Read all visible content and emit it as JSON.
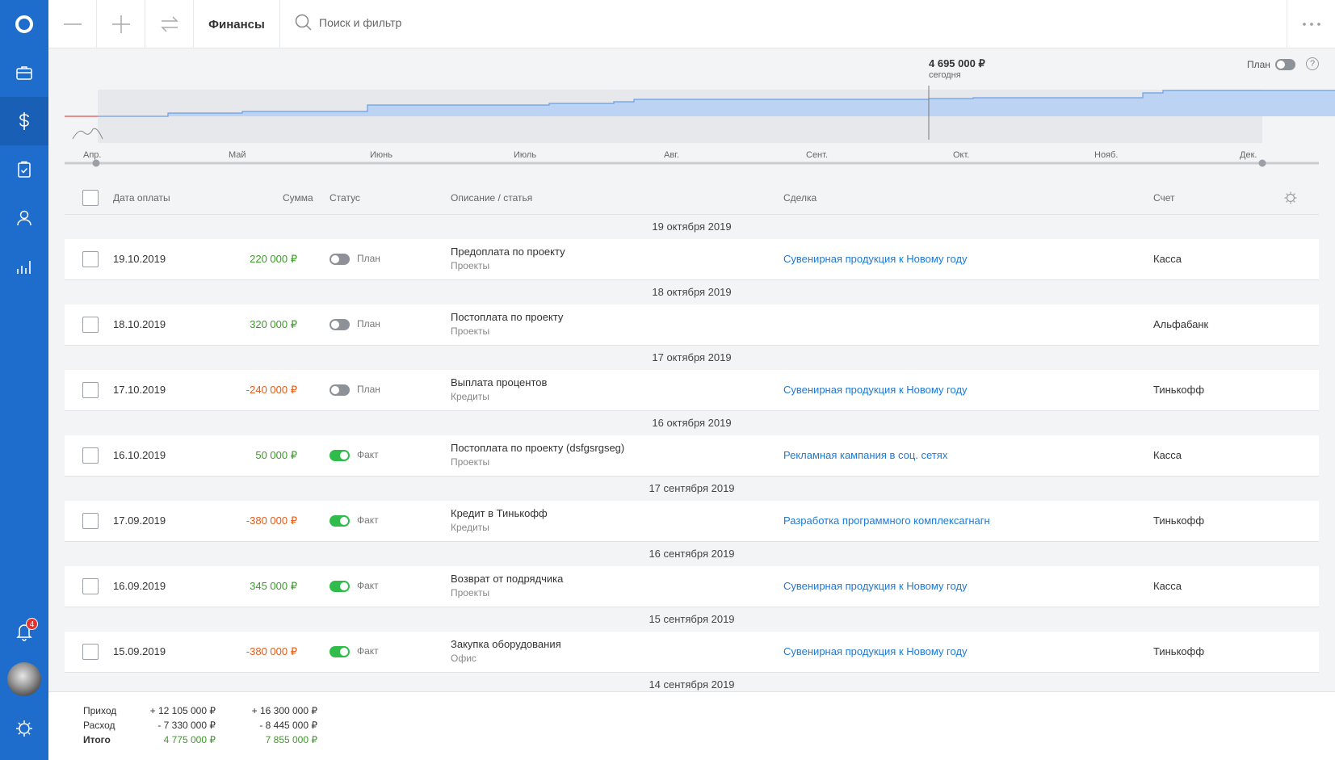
{
  "app": {
    "section_title": "Финансы"
  },
  "sidebar": {
    "items": [
      {
        "name": "logo-icon"
      },
      {
        "name": "briefcase-icon"
      },
      {
        "name": "dollar-icon"
      },
      {
        "name": "clipboard-icon"
      },
      {
        "name": "user-icon"
      },
      {
        "name": "bar-chart-icon"
      }
    ],
    "notifications": {
      "badge": "4"
    }
  },
  "search": {
    "placeholder": "Поиск и фильтр"
  },
  "chart": {
    "today_value": "4 695 000 ₽",
    "today_label": "сегодня",
    "plan_toggle_label": "План",
    "help": "?",
    "months": [
      "Апр.",
      "Май",
      "Июнь",
      "Июль",
      "Авг.",
      "Сент.",
      "Окт.",
      "Нояб.",
      "Дек."
    ]
  },
  "table": {
    "headers": {
      "date": "Дата оплаты",
      "amount": "Сумма",
      "status": "Статус",
      "description": "Описание / статья",
      "deal": "Сделка",
      "account": "Счет"
    },
    "groups": [
      {
        "header": "19 октября 2019",
        "row": {
          "date": "19.10.2019",
          "amount": "220 000 ₽",
          "sign": "pos",
          "status": "План",
          "on": false,
          "desc": "Предоплата по проекту",
          "cat": "Проекты",
          "deal": "Сувенирная продукция к Новому году",
          "account": "Касса"
        }
      },
      {
        "header": "18 октября 2019",
        "row": {
          "date": "18.10.2019",
          "amount": "320 000 ₽",
          "sign": "pos",
          "status": "План",
          "on": false,
          "desc": "Постоплата по проекту",
          "cat": "Проекты",
          "deal": "",
          "account": "Альфабанк"
        }
      },
      {
        "header": "17 октября 2019",
        "row": {
          "date": "17.10.2019",
          "amount": "-240 000 ₽",
          "sign": "neg",
          "status": "План",
          "on": false,
          "desc": "Выплата процентов",
          "cat": "Кредиты",
          "deal": "Сувенирная продукция к Новому году",
          "account": "Тинькофф"
        }
      },
      {
        "header": "16 октября 2019",
        "row": {
          "date": "16.10.2019",
          "amount": "50 000 ₽",
          "sign": "pos",
          "status": "Факт",
          "on": true,
          "desc": "Постоплата по проекту (dsfgsrgseg)",
          "cat": "Проекты",
          "deal": "Рекламная кампания в соц. сетях",
          "account": "Касса"
        }
      },
      {
        "header": "17 сентября 2019",
        "row": {
          "date": "17.09.2019",
          "amount": "-380 000 ₽",
          "sign": "neg",
          "status": "Факт",
          "on": true,
          "desc": "Кредит в Тинькофф",
          "cat": "Кредиты",
          "deal": "Разработка программного комплексагнагн",
          "account": "Тинькофф"
        }
      },
      {
        "header": "16 сентября 2019",
        "row": {
          "date": "16.09.2019",
          "amount": "345 000 ₽",
          "sign": "pos",
          "status": "Факт",
          "on": true,
          "desc": "Возврат от подрядчика",
          "cat": "Проекты",
          "deal": "Сувенирная продукция к Новому году",
          "account": "Касса"
        }
      },
      {
        "header": "15 сентября 2019",
        "row": {
          "date": "15.09.2019",
          "amount": "-380 000 ₽",
          "sign": "neg",
          "status": "Факт",
          "on": true,
          "desc": "Закупка оборудования",
          "cat": "Офис",
          "deal": "Сувенирная продукция к Новому году",
          "account": "Тинькофф"
        }
      },
      {
        "header": "14 сентября 2019",
        "row": null
      }
    ]
  },
  "footer": {
    "income_label": "Приход",
    "expense_label": "Расход",
    "total_label": "Итого",
    "income_fact": "+ 12 105 000 ₽",
    "expense_fact": "- 7 330 000 ₽",
    "total_fact": "4 775 000 ₽",
    "income_plan": "+ 16 300 000 ₽",
    "expense_plan": "- 8 445 000 ₽",
    "total_plan": "7 855 000 ₽"
  },
  "colors": {
    "sidebar": "#1e6ccc",
    "positive": "#3d9a2a",
    "negative": "#e25c1b",
    "link": "#1e7ad6",
    "toggle_on": "#2fbc4a"
  }
}
